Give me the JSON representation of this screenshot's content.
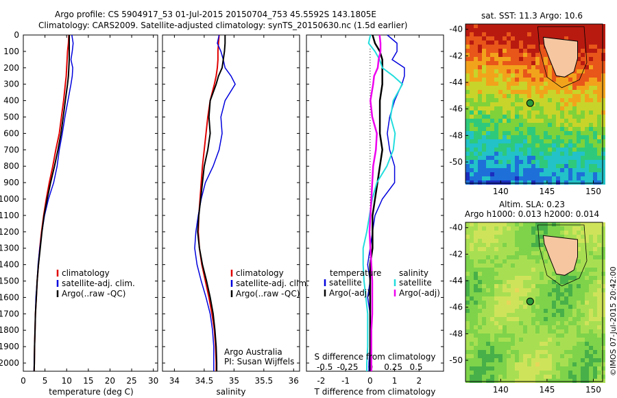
{
  "header": {
    "line1": "Argo profile: CS 5904917_53 01-Jul-2015 20150704_753 45.5592S 143.1805E",
    "line2": "Climatology: CARS2009. Satellite-adjusted climatology: synTS_20150630.nc (1.5d earlier)"
  },
  "panels": {
    "depth_ticks": [
      "0",
      "100",
      "200",
      "300",
      "400",
      "500",
      "600",
      "700",
      "800",
      "900",
      "1000",
      "1100",
      "1200",
      "1300",
      "1400",
      "1500",
      "1600",
      "1700",
      "1800",
      "1900",
      "2000"
    ],
    "temperature": {
      "xlabel": "temperature (deg C)",
      "xticks": [
        "0",
        "5",
        "10",
        "15",
        "20",
        "25",
        "30"
      ],
      "legend": [
        "climatology",
        "satellite-adj. clim.",
        "Argo(..raw -QC)"
      ]
    },
    "salinity": {
      "xlabel": "salinity",
      "xticks": [
        "34",
        "34.5",
        "35",
        "35.5",
        "36"
      ],
      "legend": [
        "climatology",
        "satellite-adj. clim.",
        "Argo(..raw -QC)"
      ],
      "credit1": "Argo Australia",
      "credit2": "PI: Susan Wijffels"
    },
    "difference": {
      "xlabel": "T difference from climatology",
      "top_label": "S difference from climatology",
      "s_ticks": [
        "-0.5",
        "-0.25",
        "0",
        "0.25",
        "0.5"
      ],
      "t_ticks": [
        "-2",
        "-1",
        "0",
        "1",
        "2"
      ],
      "legend_temp_title": "temperature",
      "legend_sal_title": "salinity",
      "legend_temp": [
        "satellite",
        "Argo(-adj)"
      ],
      "legend_sal": [
        "satellite",
        "Argo(-adj)"
      ]
    }
  },
  "maps": {
    "sst_title": "sat. SST: 11.3 Argo: 10.6",
    "sla_title1": "Altim. SLA: 0.23",
    "sla_title2": "Argo h1000: 0.013 h2000: 0.014",
    "lat_ticks": [
      "-40",
      "-42",
      "-44",
      "-46",
      "-48",
      "-50"
    ],
    "lon_ticks": [
      "140",
      "145",
      "150"
    ]
  },
  "watermark": "©IMOS 07-Jul-2015 20:42:00",
  "colors": {
    "climatology": "#e00000",
    "satellite": "#0000dd",
    "argo": "#000000",
    "satellite_sal": "#22dddd",
    "argo_sal": "#ee00ee"
  },
  "chart_data": [
    {
      "type": "line",
      "xlabel": "temperature (deg C)",
      "ylabel": "",
      "xlim": [
        0,
        31
      ],
      "ylim": [
        2050,
        0
      ],
      "depth": [
        0,
        50,
        100,
        150,
        200,
        250,
        300,
        400,
        500,
        600,
        700,
        800,
        900,
        1000,
        1100,
        1200,
        1300,
        1400,
        1500,
        1600,
        1700,
        1800,
        1900,
        2000,
        2050
      ],
      "series": [
        {
          "name": "climatology",
          "values": [
            10.5,
            10.4,
            10.2,
            10.1,
            10.0,
            9.9,
            9.7,
            9.3,
            8.8,
            8.3,
            7.5,
            6.8,
            6.0,
            5.3,
            4.7,
            4.2,
            3.8,
            3.5,
            3.2,
            3.0,
            2.8,
            2.7,
            2.6,
            2.55,
            2.5
          ]
        },
        {
          "name": "satellite-adj. clim.",
          "values": [
            11.2,
            11.5,
            11.3,
            11.0,
            11.4,
            11.3,
            11.0,
            10.3,
            9.6,
            9.0,
            8.3,
            7.8,
            7.0,
            5.8,
            4.9,
            4.3,
            3.8,
            3.4,
            3.2,
            2.9,
            2.8,
            2.7,
            2.6,
            2.5,
            2.45
          ]
        },
        {
          "name": "Argo(..raw -QC)",
          "values": [
            10.6,
            10.6,
            10.6,
            10.6,
            10.5,
            10.4,
            10.2,
            9.7,
            9.2,
            8.7,
            8.0,
            7.2,
            6.3,
            5.5,
            4.8,
            4.3,
            3.9,
            3.5,
            3.2,
            3.0,
            2.8,
            2.7,
            2.6,
            2.55,
            2.5
          ]
        }
      ]
    },
    {
      "type": "line",
      "xlabel": "salinity",
      "ylabel": "",
      "xlim": [
        33.8,
        36.1
      ],
      "ylim": [
        2050,
        0
      ],
      "depth": [
        0,
        50,
        100,
        150,
        200,
        250,
        300,
        400,
        500,
        600,
        700,
        800,
        900,
        1000,
        1100,
        1200,
        1300,
        1400,
        1500,
        1600,
        1700,
        1800,
        1900,
        2000,
        2050
      ],
      "series": [
        {
          "name": "climatology",
          "values": [
            34.75,
            34.74,
            34.73,
            34.73,
            34.72,
            34.7,
            34.67,
            34.6,
            34.56,
            34.53,
            34.5,
            34.47,
            34.45,
            34.43,
            34.41,
            34.4,
            34.42,
            34.46,
            34.52,
            34.58,
            34.63,
            34.67,
            34.69,
            34.7,
            34.7
          ]
        },
        {
          "name": "satellite-adj. clim.",
          "values": [
            34.75,
            34.72,
            34.78,
            34.82,
            34.85,
            34.95,
            35.02,
            34.85,
            34.78,
            34.8,
            34.75,
            34.65,
            34.52,
            34.45,
            34.4,
            34.36,
            34.34,
            34.38,
            34.45,
            34.53,
            34.6,
            34.64,
            34.66,
            34.66,
            34.66
          ]
        },
        {
          "name": "Argo(..raw -QC)",
          "values": [
            34.85,
            34.85,
            34.84,
            34.82,
            34.8,
            34.74,
            34.7,
            34.6,
            34.58,
            34.6,
            34.56,
            34.5,
            34.47,
            34.44,
            34.41,
            34.39,
            34.42,
            34.47,
            34.54,
            34.6,
            34.65,
            34.68,
            34.7,
            34.71,
            34.71
          ]
        }
      ]
    },
    {
      "type": "line",
      "xlabel": "T difference from climatology",
      "ylabel": "",
      "xlim": [
        -2.6,
        3.0
      ],
      "ylim": [
        2050,
        0
      ],
      "depth": [
        0,
        50,
        100,
        150,
        200,
        250,
        300,
        400,
        500,
        600,
        700,
        800,
        900,
        1000,
        1100,
        1200,
        1300,
        1400,
        1500,
        1600,
        1700,
        1800,
        1900,
        2000,
        2050
      ],
      "series": [
        {
          "name": "temperature satellite",
          "values": [
            0.7,
            1.1,
            1.1,
            0.9,
            1.4,
            1.4,
            1.3,
            1.0,
            0.8,
            0.7,
            0.8,
            1.0,
            1.0,
            0.5,
            0.2,
            0.1,
            0.0,
            -0.1,
            0.0,
            -0.1,
            0.0,
            0.0,
            0.0,
            -0.05,
            -0.05
          ]
        },
        {
          "name": "temperature Argo(-adj)",
          "values": [
            0.1,
            0.2,
            0.4,
            0.5,
            0.5,
            0.5,
            0.5,
            0.4,
            0.4,
            0.4,
            0.5,
            0.4,
            0.3,
            0.2,
            0.1,
            0.1,
            0.1,
            0.0,
            0.0,
            0.0,
            0.0,
            0.0,
            0.0,
            0.0,
            0.0
          ]
        }
      ]
    },
    {
      "type": "line",
      "xlabel": "S difference from climatology",
      "ylabel": "",
      "xlim": [
        -0.7,
        0.8
      ],
      "ylim": [
        2050,
        0
      ],
      "depth": [
        0,
        50,
        100,
        150,
        200,
        250,
        300,
        400,
        500,
        600,
        700,
        800,
        900,
        1000,
        1100,
        1200,
        1300,
        1400,
        1500,
        1600,
        1700,
        1800,
        1900,
        2000,
        2050
      ],
      "series": [
        {
          "name": "salinity satellite",
          "values": [
            0.0,
            -0.02,
            0.05,
            0.1,
            0.13,
            0.25,
            0.35,
            0.25,
            0.22,
            0.27,
            0.25,
            0.18,
            0.07,
            0.02,
            -0.01,
            -0.04,
            -0.08,
            -0.08,
            -0.07,
            -0.05,
            -0.03,
            -0.03,
            -0.03,
            -0.04,
            -0.04
          ]
        },
        {
          "name": "salinity Argo(-adj)",
          "values": [
            0.1,
            0.11,
            0.11,
            0.09,
            0.08,
            0.04,
            0.03,
            0.0,
            0.02,
            0.07,
            0.06,
            0.03,
            0.02,
            0.01,
            0.0,
            -0.01,
            0.0,
            0.01,
            0.02,
            0.02,
            0.02,
            0.01,
            0.01,
            0.01,
            0.01
          ]
        }
      ]
    }
  ]
}
